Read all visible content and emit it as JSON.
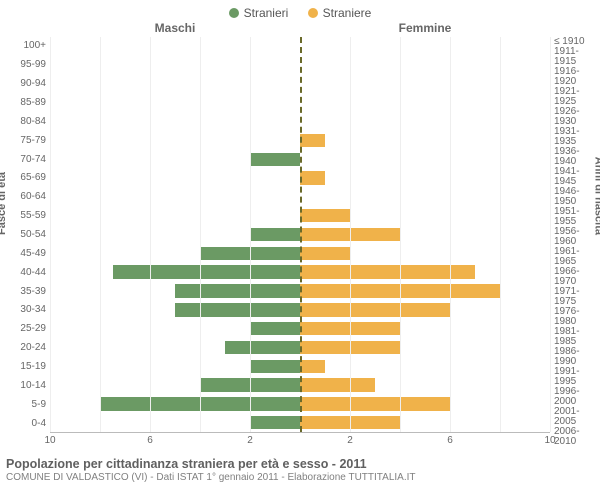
{
  "legend": {
    "male": {
      "label": "Stranieri",
      "color": "#6b9a64"
    },
    "female": {
      "label": "Straniere",
      "color": "#f0b24a"
    }
  },
  "headers": {
    "male": "Maschi",
    "female": "Femmine"
  },
  "axis": {
    "left_title": "Fasce di età",
    "right_title": "Anni di nascita",
    "xmax": 10,
    "xtick_step": 2,
    "xticks_left": [
      10,
      6,
      2
    ],
    "xticks_right": [
      2,
      6,
      10
    ],
    "grid_color": "#eeeeee",
    "center_line_color": "#6a6a2a"
  },
  "rows": [
    {
      "age": "100+",
      "birth": "≤ 1910",
      "m": 0,
      "f": 0
    },
    {
      "age": "95-99",
      "birth": "1911-1915",
      "m": 0,
      "f": 0
    },
    {
      "age": "90-94",
      "birth": "1916-1920",
      "m": 0,
      "f": 0
    },
    {
      "age": "85-89",
      "birth": "1921-1925",
      "m": 0,
      "f": 0
    },
    {
      "age": "80-84",
      "birth": "1926-1930",
      "m": 0,
      "f": 0
    },
    {
      "age": "75-79",
      "birth": "1931-1935",
      "m": 0,
      "f": 1
    },
    {
      "age": "70-74",
      "birth": "1936-1940",
      "m": 2,
      "f": 0
    },
    {
      "age": "65-69",
      "birth": "1941-1945",
      "m": 0,
      "f": 1
    },
    {
      "age": "60-64",
      "birth": "1946-1950",
      "m": 0,
      "f": 0
    },
    {
      "age": "55-59",
      "birth": "1951-1955",
      "m": 0,
      "f": 2
    },
    {
      "age": "50-54",
      "birth": "1956-1960",
      "m": 2,
      "f": 4
    },
    {
      "age": "45-49",
      "birth": "1961-1965",
      "m": 4,
      "f": 2
    },
    {
      "age": "40-44",
      "birth": "1966-1970",
      "m": 7.5,
      "f": 7
    },
    {
      "age": "35-39",
      "birth": "1971-1975",
      "m": 5,
      "f": 8
    },
    {
      "age": "30-34",
      "birth": "1976-1980",
      "m": 5,
      "f": 6
    },
    {
      "age": "25-29",
      "birth": "1981-1985",
      "m": 2,
      "f": 4
    },
    {
      "age": "20-24",
      "birth": "1986-1990",
      "m": 3,
      "f": 4
    },
    {
      "age": "15-19",
      "birth": "1991-1995",
      "m": 2,
      "f": 1
    },
    {
      "age": "10-14",
      "birth": "1996-2000",
      "m": 4,
      "f": 3
    },
    {
      "age": "5-9",
      "birth": "2001-2005",
      "m": 8,
      "f": 6
    },
    {
      "age": "0-4",
      "birth": "2006-2010",
      "m": 2,
      "f": 4
    }
  ],
  "colors": {
    "male_bar": "#6b9a64",
    "female_bar": "#f0b24a",
    "background": "#ffffff",
    "text": "#666666"
  },
  "footer": {
    "title": "Popolazione per cittadinanza straniera per età e sesso - 2011",
    "subtitle": "COMUNE DI VALDASTICO (VI) - Dati ISTAT 1° gennaio 2011 - Elaborazione TUTTITALIA.IT"
  },
  "typography": {
    "legend_fontsize": 12,
    "header_fontsize": 12,
    "tick_fontsize": 10,
    "title_fontsize": 12.5,
    "subtitle_fontsize": 10
  },
  "chart_type": "population-pyramid"
}
